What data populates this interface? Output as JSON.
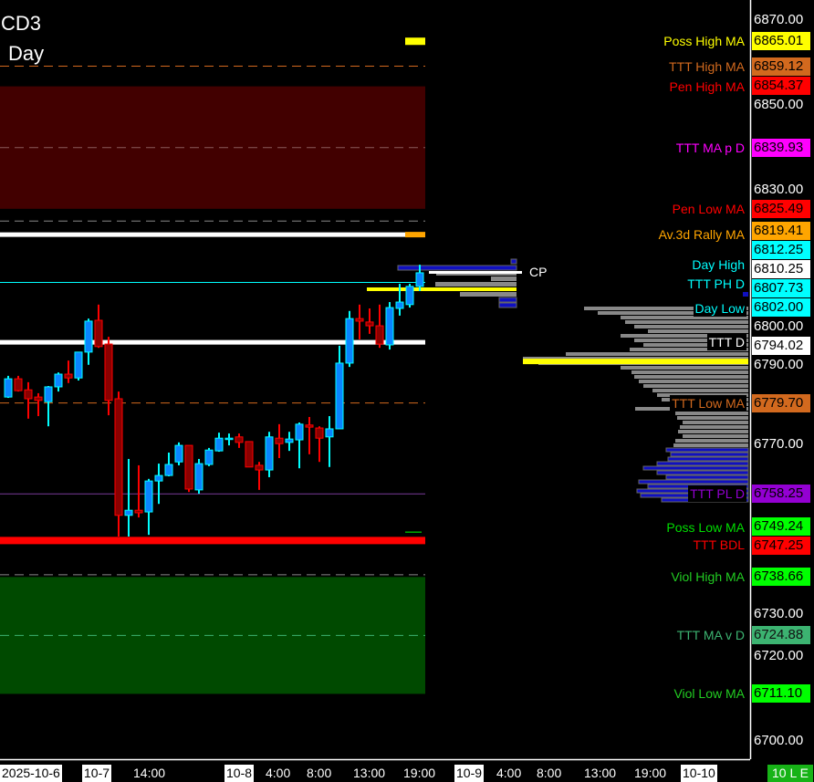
{
  "header": {
    "symbol": "CD3",
    "timeframe": "Day"
  },
  "colors": {
    "background": "#000000",
    "up_candle": "#0a84ff",
    "up_outline": "#00ffff",
    "down_candle": "#8b0000",
    "down_outline": "#ff0000"
  },
  "price_axis": {
    "ticks": [
      "6870.00",
      "6850.00",
      "6830.00",
      "6800.00",
      "6790.00",
      "6770.00",
      "6730.00",
      "6720.00",
      "6700.00"
    ],
    "tick_values": [
      6870,
      6850,
      6830,
      6800,
      6790,
      6770,
      6730,
      6720,
      6700
    ],
    "current_price": {
      "label": "CP",
      "value": "6810.25",
      "color": "#ffffff"
    }
  },
  "levels": [
    {
      "name": "Poss High MA",
      "value": "6865.01",
      "price": 6865.01,
      "color": "#ffff00",
      "text_color": "#ffff00"
    },
    {
      "name": "TTT High MA",
      "value": "6859.12",
      "price": 6859.12,
      "color": "#d2691e",
      "text_color": "#d2691e"
    },
    {
      "name": "Pen High MA",
      "value": "6854.37",
      "price": 6854.37,
      "color": "#ff0000",
      "text_color": "#ff0000"
    },
    {
      "name": "TTT MA p D",
      "value": "6839.93",
      "price": 6839.93,
      "color": "#ff00ff",
      "text_color": "#ff00ff"
    },
    {
      "name": "Pen Low MA",
      "value": "6825.49",
      "price": 6825.49,
      "color": "#ff0000",
      "text_color": "#ff0000"
    },
    {
      "name": "Av.3d Rally MA",
      "value": "6819.41",
      "price": 6819.41,
      "color": "#ffa500",
      "text_color": "#ffa500"
    },
    {
      "name": "Day High",
      "value": "6812.25",
      "price": 6812.25,
      "color": "#00ffff",
      "text_color": "#00ffff"
    },
    {
      "name": "TTT PH D",
      "value": "6807.73",
      "price": 6807.73,
      "color": "#00ffff",
      "text_color": "#00ffff"
    },
    {
      "name": "Day Low",
      "value": "6802.00",
      "price": 6802.0,
      "color": "#00ffff",
      "text_color": "#00ffff"
    },
    {
      "name": "TTT D",
      "value": "6794.02",
      "price": 6794.02,
      "color": "#ffffff",
      "text_color": "#ffffff"
    },
    {
      "name": "TTT Low MA",
      "value": "6779.70",
      "price": 6779.7,
      "color": "#d2691e",
      "text_color": "#d2691e"
    },
    {
      "name": "TTT PL D",
      "value": "6758.25",
      "price": 6758.25,
      "color": "#9400d3",
      "text_color": "#9400d3"
    },
    {
      "name": "Poss Low MA",
      "value": "6749.24",
      "price": 6749.24,
      "color": "#00ff00",
      "text_color": "#00dd00"
    },
    {
      "name": "TTT BDL",
      "value": "6747.25",
      "price": 6747.25,
      "color": "#ff0000",
      "text_color": "#ff0000"
    },
    {
      "name": "Viol High MA",
      "value": "6738.66",
      "price": 6738.66,
      "color": "#00ff00",
      "text_color": "#22cc22"
    },
    {
      "name": "TTT MA v D",
      "value": "6724.88",
      "price": 6724.88,
      "color": "#3cb371",
      "text_color": "#3cb371"
    },
    {
      "name": "Viol Low MA",
      "value": "6711.10",
      "price": 6711.1,
      "color": "#00ff00",
      "text_color": "#22cc22"
    }
  ],
  "time_axis": [
    {
      "label": "2025-10-6",
      "style": "boxed"
    },
    {
      "label": "10-7",
      "style": "boxed"
    },
    {
      "label": "14:00",
      "style": "plain"
    },
    {
      "label": "10-8",
      "style": "boxed"
    },
    {
      "label": "4:00",
      "style": "plain"
    },
    {
      "label": "8:00",
      "style": "plain"
    },
    {
      "label": "13:00",
      "style": "plain"
    },
    {
      "label": "19:00",
      "style": "plain"
    },
    {
      "label": "10-9",
      "style": "boxed"
    },
    {
      "label": "4:00",
      "style": "plain"
    },
    {
      "label": "8:00",
      "style": "plain"
    },
    {
      "label": "13:00",
      "style": "plain"
    },
    {
      "label": "19:00",
      "style": "plain"
    },
    {
      "label": "10-10",
      "style": "boxed"
    },
    {
      "label": "10 L E",
      "style": "green"
    }
  ],
  "candles": [
    [
      6781.1,
      6786.1,
      6780.9,
      6785.4
    ],
    [
      6785.4,
      6786.1,
      6782.4,
      6782.6
    ],
    [
      6782.8,
      6784.6,
      6776.0,
      6780.7
    ],
    [
      6781.1,
      6782.0,
      6776.6,
      6780.3
    ],
    [
      6780.0,
      6783.7,
      6774.2,
      6783.5
    ],
    [
      6783.5,
      6786.9,
      6782.4,
      6786.5
    ],
    [
      6786.5,
      6789.7,
      6784.4,
      6785.6
    ],
    [
      6785.6,
      6791.7,
      6785.0,
      6791.7
    ],
    [
      6791.7,
      6799.6,
      6788.7,
      6799.0
    ],
    [
      6799.2,
      6802.9,
      6792.7,
      6793.0
    ],
    [
      6793.6,
      6795.3,
      6776.8,
      6780.3
    ],
    [
      6780.7,
      6782.4,
      6748.2,
      6753.2
    ],
    [
      6753.2,
      6766.5,
      6748.2,
      6754.4
    ],
    [
      6754.4,
      6765.0,
      6752.7,
      6753.8
    ],
    [
      6754.0,
      6761.8,
      6748.6,
      6761.3
    ],
    [
      6761.3,
      6765.4,
      6755.9,
      6762.6
    ],
    [
      6762.6,
      6768.0,
      6762.4,
      6765.2
    ],
    [
      6765.8,
      6770.4,
      6765.0,
      6769.7
    ],
    [
      6769.7,
      6769.7,
      6758.7,
      6759.4
    ],
    [
      6759.2,
      6766.5,
      6758.3,
      6765.4
    ],
    [
      6765.2,
      6769.1,
      6764.8,
      6768.6
    ],
    [
      6768.4,
      6772.7,
      6768.2,
      6771.4
    ],
    [
      6771.3,
      6772.5,
      6769.7,
      6771.4
    ],
    [
      6771.7,
      6772.5,
      6769.1,
      6770.4
    ],
    [
      6770.6,
      6770.6,
      6764.6,
      6764.6
    ],
    [
      6765.0,
      6765.8,
      6759.2,
      6763.9
    ],
    [
      6763.9,
      6772.9,
      6762.2,
      6771.7
    ],
    [
      6771.4,
      6774.7,
      6766.7,
      6770.1
    ],
    [
      6770.4,
      6772.9,
      6768.4,
      6771.2
    ],
    [
      6771.0,
      6775.1,
      6764.3,
      6774.7
    ],
    [
      6774.5,
      6776.4,
      6767.6,
      6774.0
    ],
    [
      6773.8,
      6774.2,
      6765.8,
      6771.4
    ],
    [
      6771.7,
      6776.6,
      6764.6,
      6773.6
    ],
    [
      6773.6,
      6793.2,
      6773.6,
      6789.1
    ],
    [
      6789.1,
      6801.4,
      6788.2,
      6799.6
    ],
    [
      6799.6,
      6802.9,
      6794.7,
      6799.0
    ],
    [
      6798.8,
      6802.0,
      6796.0,
      6797.9
    ],
    [
      6797.9,
      6802.9,
      6792.7,
      6793.6
    ],
    [
      6793.4,
      6803.5,
      6792.3,
      6802.2
    ],
    [
      6802.0,
      6807.8,
      6800.3,
      6803.5
    ],
    [
      6802.9,
      6807.8,
      6802.2,
      6807.2
    ],
    [
      6807.2,
      6812.3,
      6806.1,
      6810.4
    ]
  ],
  "volume_profile": {
    "poc_price": 6789.5,
    "rows": [
      180,
      165,
      140,
      135,
      125,
      110,
      140,
      125,
      115,
      130,
      200,
      247,
      230,
      140,
      128,
      125,
      120,
      115,
      105,
      100,
      95,
      80,
      124,
      80,
      78,
      72,
      75,
      77,
      72,
      80,
      82,
      90,
      85,
      88,
      100,
      115,
      100,
      90,
      120,
      110,
      122,
      118,
      95
    ],
    "value_area_low_index": 31
  }
}
